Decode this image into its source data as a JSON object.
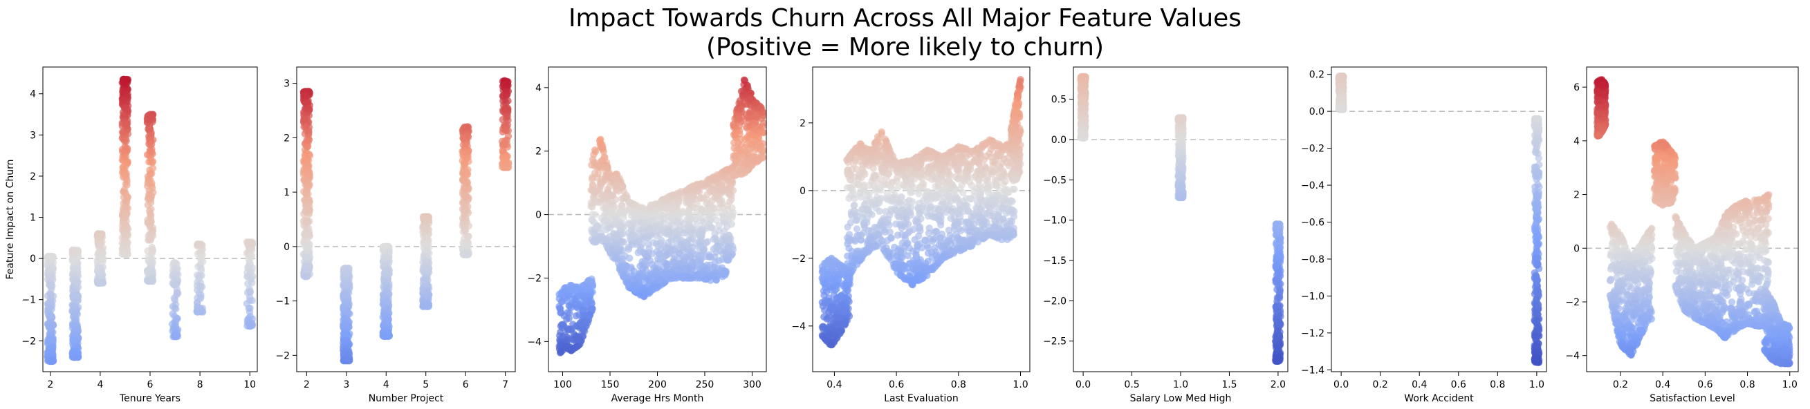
{
  "title_line1": "Impact Towards Churn Across All Major Feature Values",
  "title_line2": "(Positive = More likely to churn)",
  "colors": {
    "low": "#3b4cc0",
    "high": "#b40426",
    "refline": "#bdbdbd"
  },
  "chart_data": [
    {
      "type": "scatter",
      "xlabel": "Tenure Years",
      "ylabel": "Feature Impact on Churn",
      "xlim": [
        1.7,
        10.3
      ],
      "ylim": [
        -2.75,
        4.65
      ],
      "xticks": [
        2,
        4,
        6,
        8,
        10
      ],
      "yticks": [
        -2,
        -1,
        0,
        1,
        2,
        3,
        4
      ],
      "reference_line_y": 0,
      "clusters": [
        {
          "x": 2,
          "jitter": 0.12,
          "ymin": -2.5,
          "ymax": 0.05,
          "n": 260
        },
        {
          "x": 3,
          "jitter": 0.12,
          "ymin": -2.4,
          "ymax": 0.2,
          "n": 300
        },
        {
          "x": 4,
          "jitter": 0.12,
          "ymin": -0.6,
          "ymax": 0.6,
          "n": 120
        },
        {
          "x": 5,
          "jitter": 0.12,
          "ymin": 0.1,
          "ymax": 4.35,
          "n": 260
        },
        {
          "x": 6,
          "jitter": 0.12,
          "ymin": -0.55,
          "ymax": 3.5,
          "n": 180
        },
        {
          "x": 7,
          "jitter": 0.12,
          "ymin": -1.9,
          "ymax": -0.1,
          "n": 70
        },
        {
          "x": 8,
          "jitter": 0.12,
          "ymin": -1.3,
          "ymax": 0.35,
          "n": 60
        },
        {
          "x": 10,
          "jitter": 0.12,
          "ymin": -1.65,
          "ymax": 0.4,
          "n": 70
        }
      ]
    },
    {
      "type": "scatter",
      "xlabel": "Number Project",
      "ylabel": "",
      "xlim": [
        1.75,
        7.25
      ],
      "ylim": [
        -2.3,
        3.3
      ],
      "xticks": [
        2,
        3,
        4,
        5,
        6,
        7
      ],
      "yticks": [
        -2,
        -1,
        0,
        1,
        2,
        3
      ],
      "reference_line_y": 0,
      "clusters": [
        {
          "x": 2,
          "jitter": 0.08,
          "ymin": -0.55,
          "ymax": 2.85,
          "n": 300
        },
        {
          "x": 3,
          "jitter": 0.08,
          "ymin": -2.1,
          "ymax": -0.4,
          "n": 300
        },
        {
          "x": 4,
          "jitter": 0.08,
          "ymin": -1.65,
          "ymax": 0.0,
          "n": 300
        },
        {
          "x": 5,
          "jitter": 0.08,
          "ymin": -1.1,
          "ymax": 0.55,
          "n": 220
        },
        {
          "x": 6,
          "jitter": 0.08,
          "ymin": -0.15,
          "ymax": 2.2,
          "n": 200
        },
        {
          "x": 7,
          "jitter": 0.08,
          "ymin": 1.45,
          "ymax": 3.05,
          "n": 120
        }
      ]
    },
    {
      "type": "scatter",
      "xlabel": "Average Hrs Month",
      "ylabel": "",
      "xlim": [
        85,
        315
      ],
      "ylim": [
        -4.95,
        4.65
      ],
      "xticks": [
        100,
        150,
        200,
        250,
        300
      ],
      "yticks": [
        -4,
        -2,
        0,
        2,
        4
      ],
      "reference_line_y": 0,
      "bands": [
        {
          "x": [
            96,
            103,
            110,
            118,
            126,
            132
          ],
          "ymin": [
            -4.4,
            -4.2,
            -4.3,
            -4.1,
            -3.5,
            -2.9
          ],
          "ymax": [
            -2.4,
            -2.3,
            -2.2,
            -2.3,
            -2.1,
            -2.0
          ],
          "n": 260
        },
        {
          "x": [
            130,
            138,
            145,
            150,
            158,
            170,
            185,
            200,
            215,
            230,
            245,
            260,
            272,
            280
          ],
          "ymin": [
            -1.0,
            -0.8,
            -0.9,
            -1.2,
            -1.6,
            -2.3,
            -2.6,
            -2.3,
            -2.0,
            -2.0,
            -2.0,
            -2.1,
            -1.9,
            -1.2
          ],
          "ymax": [
            1.5,
            2.6,
            1.8,
            1.2,
            1.3,
            0.4,
            0.2,
            0.4,
            0.6,
            0.8,
            1.0,
            1.2,
            1.4,
            1.5
          ],
          "n": 1300
        },
        {
          "x": [
            280,
            292,
            302,
            312
          ],
          "ymin": [
            1.2,
            1.3,
            1.6,
            1.8
          ],
          "ymax": [
            2.8,
            4.3,
            3.6,
            3.3
          ],
          "n": 260
        }
      ]
    },
    {
      "type": "scatter",
      "xlabel": "Last Evaluation",
      "ylabel": "",
      "xlim": [
        0.33,
        1.03
      ],
      "ylim": [
        -5.35,
        3.65
      ],
      "xticks": [
        0.4,
        0.6,
        0.8,
        1.0
      ],
      "yticks": [
        -4,
        -2,
        0,
        2
      ],
      "reference_line_y": 0,
      "bands": [
        {
          "x": [
            0.36,
            0.39,
            0.42,
            0.45
          ],
          "ymin": [
            -4.3,
            -4.6,
            -4.2,
            -3.7
          ],
          "ymax": [
            -2.2,
            -2.0,
            -2.2,
            -2.4
          ],
          "n": 280
        },
        {
          "x": [
            0.44,
            0.48,
            0.52,
            0.55,
            0.6,
            0.65,
            0.7,
            0.75,
            0.8,
            0.85,
            0.9,
            0.95,
            0.98
          ],
          "ymin": [
            -2.6,
            -2.1,
            -1.7,
            -1.6,
            -2.4,
            -2.8,
            -2.5,
            -2.0,
            -1.8,
            -1.6,
            -1.3,
            -1.5,
            -1.3
          ],
          "ymax": [
            0.9,
            1.4,
            1.2,
            1.8,
            0.8,
            0.9,
            1.2,
            1.0,
            1.3,
            1.2,
            1.5,
            1.3,
            1.6
          ],
          "n": 1400
        },
        {
          "x": [
            0.97,
            0.985,
            1.0
          ],
          "ymin": [
            0.4,
            0.3,
            0.6
          ],
          "ymax": [
            1.8,
            2.6,
            3.3
          ],
          "n": 160
        }
      ]
    },
    {
      "type": "scatter",
      "xlabel": "Salary Low Med High",
      "ylabel": "",
      "xlim": [
        -0.1,
        2.1
      ],
      "ylim": [
        -2.88,
        0.9
      ],
      "xticks": [
        0.0,
        0.5,
        1.0,
        1.5,
        2.0
      ],
      "yticks": [
        -2.5,
        -2.0,
        -1.5,
        -1.0,
        -0.5,
        0.0,
        0.5
      ],
      "reference_line_y": 0,
      "clusters": [
        {
          "x": 0,
          "jitter": 0.025,
          "ymin": 0.02,
          "ymax": 0.78,
          "n": 300
        },
        {
          "x": 1,
          "jitter": 0.025,
          "ymin": -0.72,
          "ymax": 0.27,
          "n": 300
        },
        {
          "x": 2,
          "jitter": 0.025,
          "ymin": -2.75,
          "ymax": -1.05,
          "n": 260
        }
      ]
    },
    {
      "type": "scatter",
      "xlabel": "Work Accident",
      "ylabel": "",
      "xlim": [
        -0.05,
        1.05
      ],
      "ylim": [
        -1.41,
        0.24
      ],
      "xticks": [
        0.0,
        0.2,
        0.4,
        0.6,
        0.8,
        1.0
      ],
      "yticks": [
        -1.4,
        -1.2,
        -1.0,
        -0.8,
        -0.6,
        -0.4,
        -0.2,
        0.0,
        0.2
      ],
      "reference_line_y": 0,
      "clusters": [
        {
          "x": 0,
          "jitter": 0.012,
          "ymin": 0.01,
          "ymax": 0.19,
          "n": 300
        },
        {
          "x": 1,
          "jitter": 0.012,
          "ymin": -1.36,
          "ymax": -0.04,
          "n": 300
        }
      ]
    },
    {
      "type": "scatter",
      "xlabel": "Satisfaction Level",
      "ylabel": "",
      "xlim": [
        0.04,
        1.04
      ],
      "ylim": [
        -4.6,
        6.75
      ],
      "xticks": [
        0.2,
        0.4,
        0.6,
        0.8,
        1.0
      ],
      "yticks": [
        -4,
        -2,
        0,
        2,
        4,
        6
      ],
      "reference_line_y": 0,
      "bands": [
        {
          "x": [
            0.09,
            0.11,
            0.13
          ],
          "ymin": [
            4.1,
            4.3,
            4.6
          ],
          "ymax": [
            6.2,
            6.3,
            6.1
          ],
          "n": 260
        },
        {
          "x": [
            0.15,
            0.2,
            0.25,
            0.3,
            0.35
          ],
          "ymin": [
            -1.8,
            -3.6,
            -4.0,
            -3.2,
            -2.6
          ],
          "ymax": [
            1.0,
            0.5,
            -0.4,
            0.2,
            0.8
          ],
          "n": 500
        },
        {
          "x": [
            0.36,
            0.4,
            0.44,
            0.46
          ],
          "ymin": [
            1.8,
            1.6,
            1.7,
            2.0
          ],
          "ymax": [
            3.8,
            4.0,
            3.6,
            3.4
          ],
          "n": 280
        },
        {
          "x": [
            0.46,
            0.5,
            0.55,
            0.6,
            0.65,
            0.7,
            0.75,
            0.8,
            0.85,
            0.9
          ],
          "ymin": [
            -1.5,
            -2.3,
            -2.6,
            -2.8,
            -3.0,
            -3.4,
            -3.0,
            -2.8,
            -2.9,
            -2.9
          ],
          "ymax": [
            1.2,
            0.6,
            0.0,
            0.2,
            0.4,
            1.3,
            1.6,
            1.8,
            1.8,
            2.0
          ],
          "n": 1000
        },
        {
          "x": [
            0.88,
            0.92,
            0.96,
            1.0
          ],
          "ymin": [
            -3.8,
            -4.2,
            -4.3,
            -4.3
          ],
          "ymax": [
            -1.5,
            -2.0,
            -2.8,
            -2.9
          ],
          "n": 300
        }
      ]
    }
  ]
}
